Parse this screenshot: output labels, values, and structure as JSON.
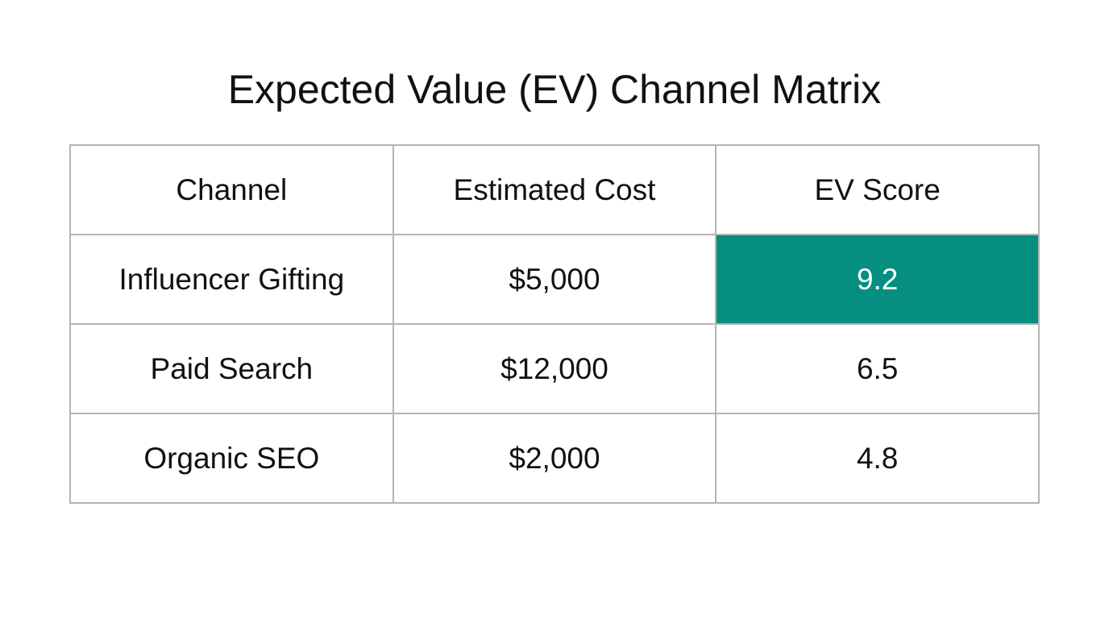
{
  "title": "Expected Value (EV) Channel Matrix",
  "highlight_color": "#068F80",
  "table": {
    "headers": [
      "Channel",
      "Estimated Cost",
      "EV Score"
    ],
    "rows": [
      [
        "Influencer Gifting",
        "$5,000",
        "9.2"
      ],
      [
        "Paid Search",
        "$12,000",
        "6.5"
      ],
      [
        "Organic SEO",
        "$2,000",
        "4.8"
      ]
    ],
    "highlighted_cell": {
      "row": 0,
      "col": 2
    }
  }
}
